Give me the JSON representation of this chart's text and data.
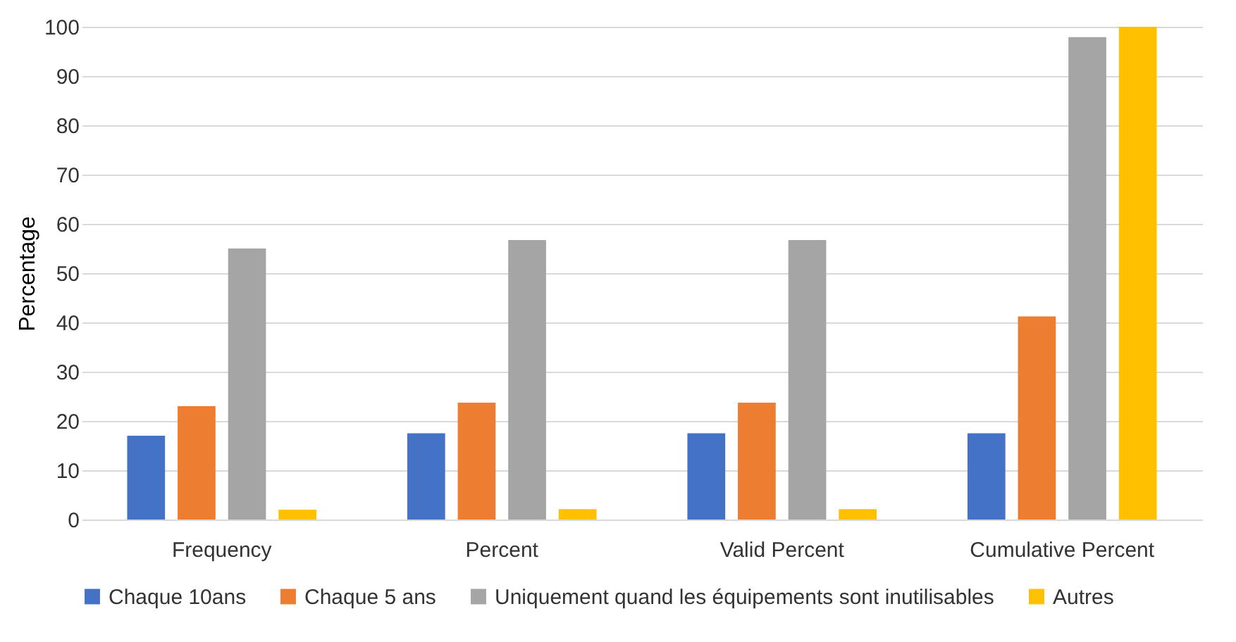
{
  "chart_data": {
    "type": "bar",
    "ylabel": "Percentage",
    "categories": [
      "Frequency",
      "Percent",
      "Valid Percent",
      "Cumulative Percent"
    ],
    "series": [
      {
        "name": "Chaque 10ans",
        "color": "#4472c4",
        "values": [
          17,
          17.5,
          17.5,
          17.5
        ]
      },
      {
        "name": "Chaque 5 ans",
        "color": "#ed7d31",
        "values": [
          23,
          23.7,
          23.7,
          41.2
        ]
      },
      {
        "name": "Uniquement quand les équipements sont inutilisables",
        "color": "#a5a5a5",
        "values": [
          55,
          56.7,
          56.7,
          97.9
        ]
      },
      {
        "name": "Autres",
        "color": "#ffc000",
        "values": [
          2,
          2.1,
          2.1,
          100
        ]
      }
    ],
    "ylim": [
      0,
      100
    ],
    "yticks": [
      0,
      10,
      20,
      30,
      40,
      50,
      60,
      70,
      80,
      90,
      100
    ],
    "grid": "y",
    "legend": "bottom"
  }
}
